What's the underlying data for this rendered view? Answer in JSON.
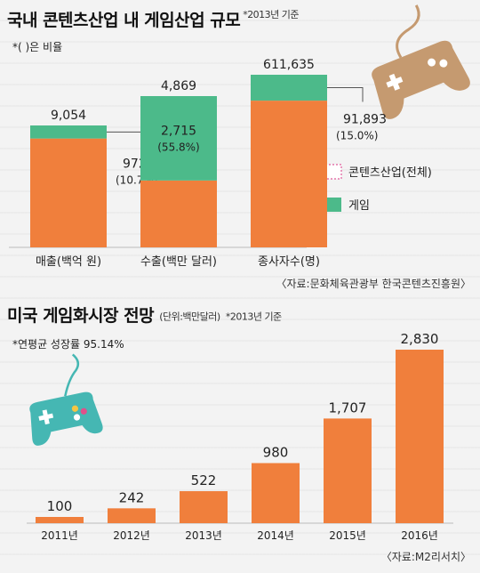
{
  "chart_data": [
    {
      "type": "bar",
      "title": "국내 콘텐츠산업 내 게임산업 규모",
      "title_note": "*2013년 기준",
      "ratio_note": "*( )은 비율",
      "categories": [
        "매출(백억 원)",
        "수출(백만 달러)",
        "종사자수(명)"
      ],
      "totals": [
        9054,
        4869,
        611635
      ],
      "total_labels": [
        "9,054",
        "4,869",
        "611,635"
      ],
      "game_values": [
        972,
        2715,
        91893
      ],
      "game_labels": [
        "972",
        "2,715",
        "91,893"
      ],
      "game_ratio_labels": [
        "(10.7%)",
        "(55.8%)",
        "(15.0%)"
      ],
      "game_ratio": [
        10.7,
        55.8,
        15.0
      ],
      "legend": [
        {
          "name": "콘텐츠산업(전체)",
          "color": "#f07f3c",
          "style": "dotted-pink"
        },
        {
          "name": "게임",
          "color": "#4cba8a"
        }
      ],
      "source": "〈자료:문화체육관광부  한국콘텐츠진흥원〉",
      "colors": {
        "total": "#f07f3c",
        "game": "#4cba8a"
      }
    },
    {
      "type": "bar",
      "title": "미국 게임화시장 전망",
      "unit_note": "(단위:백만달러)",
      "title_note": "*2013년 기준",
      "growth_note": "*연평균 성장률 95.14%",
      "categories": [
        "2011년",
        "2012년",
        "2013년",
        "2014년",
        "2015년",
        "2016년"
      ],
      "values": [
        100,
        242,
        522,
        980,
        1707,
        2830
      ],
      "value_labels": [
        "100",
        "242",
        "522",
        "980",
        "1,707",
        "2,830"
      ],
      "source": "〈자료:M2리서치〉",
      "colors": {
        "bar": "#f07f3c"
      }
    }
  ],
  "icons": [
    "gamepad-icon",
    "gamepad-icon"
  ]
}
